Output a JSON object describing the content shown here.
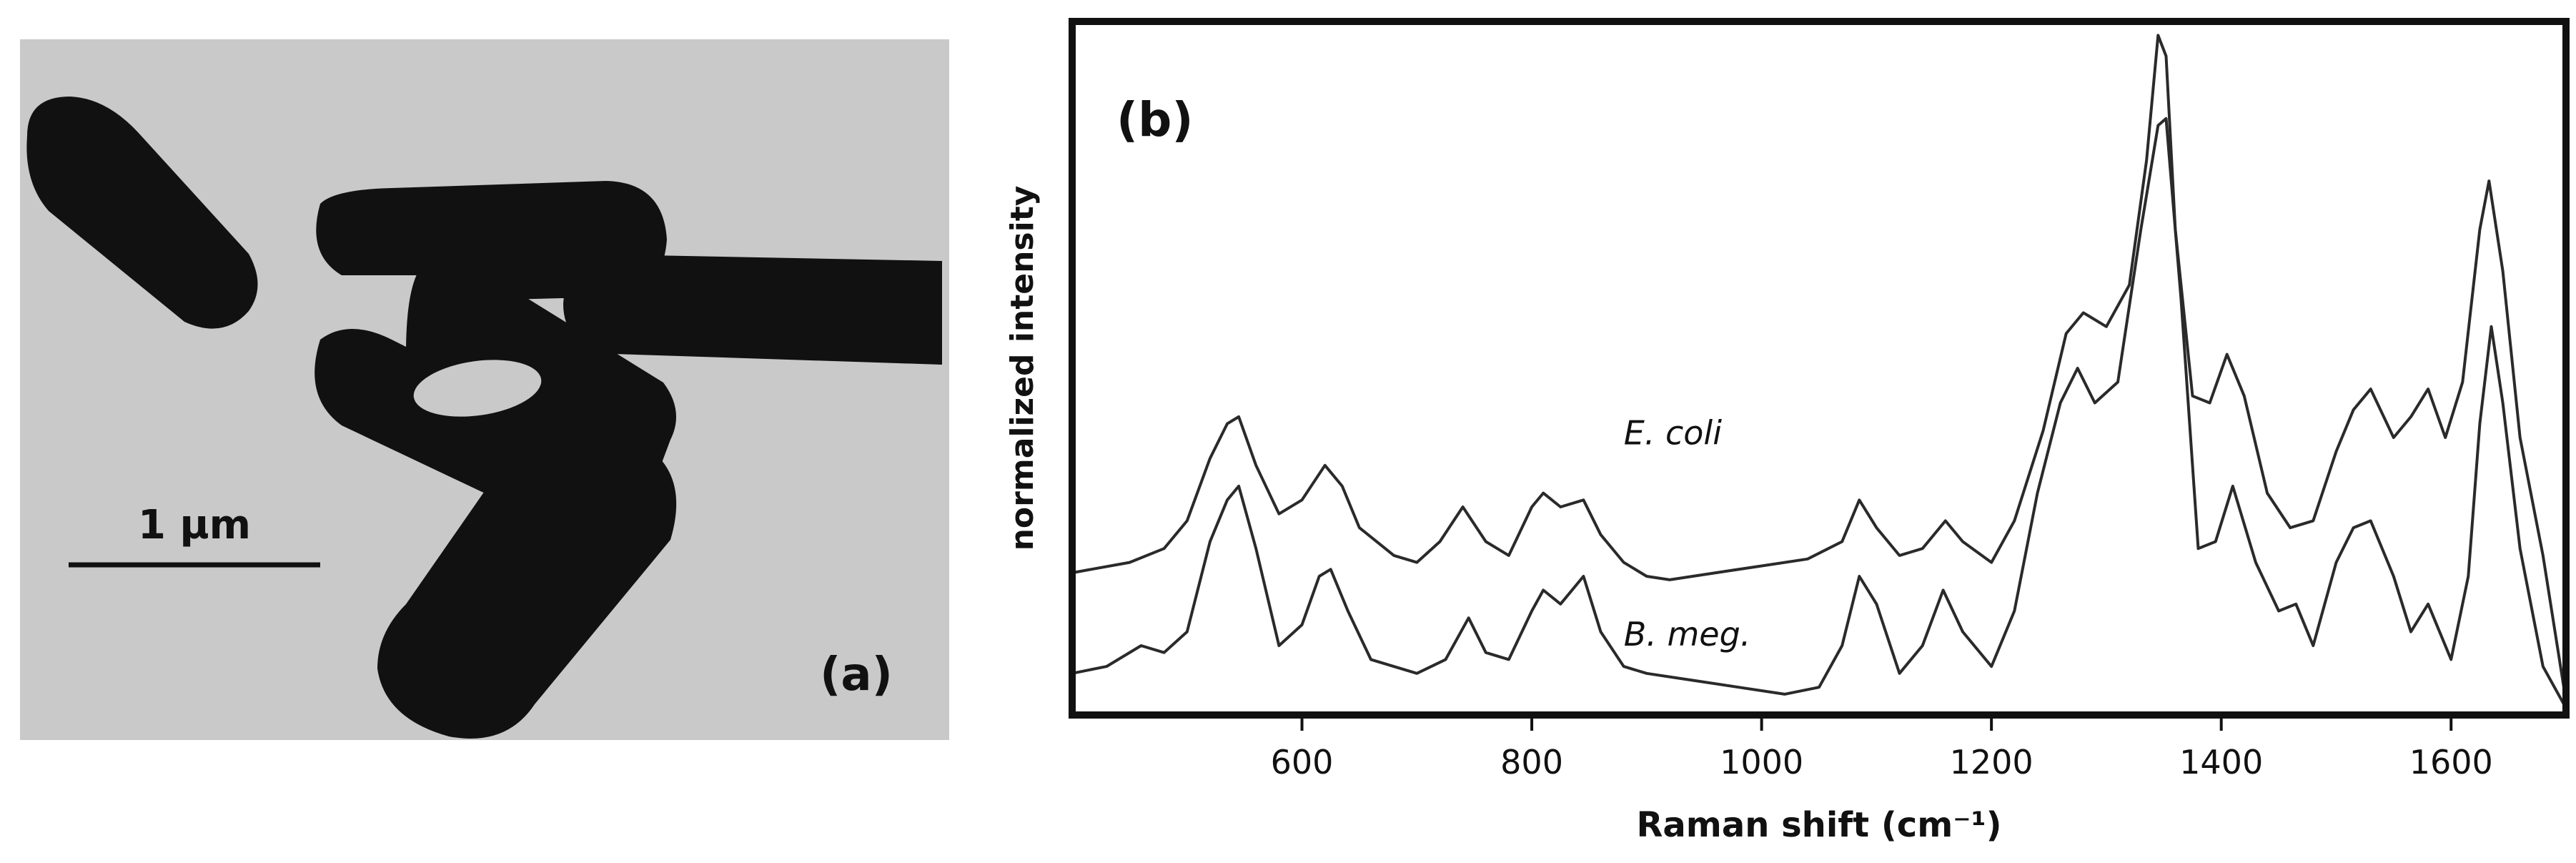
{
  "panel_a": {
    "label": "(a)",
    "scale_bar_label": "1 µm",
    "background_color": "#c9c9c9",
    "cell_color": "#111111"
  },
  "chart_data": {
    "type": "line",
    "panel_label": "(b)",
    "xlabel": "Raman shift (cm⁻¹)",
    "ylabel": "normalized intensity",
    "xlim": [
      400,
      1700
    ],
    "ylim": [
      0,
      1
    ],
    "x_ticks": [
      600,
      800,
      1000,
      1200,
      1400,
      1600
    ],
    "grid": false,
    "line_color": "#2a2a2a",
    "series": [
      {
        "name": "E. coli",
        "points": [
          [
            400,
            0.205
          ],
          [
            450,
            0.22
          ],
          [
            480,
            0.24
          ],
          [
            500,
            0.28
          ],
          [
            520,
            0.37
          ],
          [
            535,
            0.42
          ],
          [
            545,
            0.43
          ],
          [
            560,
            0.36
          ],
          [
            580,
            0.29
          ],
          [
            600,
            0.31
          ],
          [
            620,
            0.36
          ],
          [
            635,
            0.33
          ],
          [
            650,
            0.27
          ],
          [
            680,
            0.23
          ],
          [
            700,
            0.22
          ],
          [
            720,
            0.25
          ],
          [
            740,
            0.3
          ],
          [
            760,
            0.25
          ],
          [
            780,
            0.23
          ],
          [
            800,
            0.3
          ],
          [
            810,
            0.32
          ],
          [
            825,
            0.3
          ],
          [
            845,
            0.31
          ],
          [
            860,
            0.26
          ],
          [
            880,
            0.22
          ],
          [
            900,
            0.2
          ],
          [
            920,
            0.195
          ],
          [
            960,
            0.205
          ],
          [
            1000,
            0.215
          ],
          [
            1040,
            0.225
          ],
          [
            1070,
            0.25
          ],
          [
            1085,
            0.31
          ],
          [
            1100,
            0.27
          ],
          [
            1120,
            0.23
          ],
          [
            1140,
            0.24
          ],
          [
            1160,
            0.28
          ],
          [
            1175,
            0.25
          ],
          [
            1200,
            0.22
          ],
          [
            1220,
            0.28
          ],
          [
            1245,
            0.41
          ],
          [
            1265,
            0.55
          ],
          [
            1280,
            0.58
          ],
          [
            1300,
            0.56
          ],
          [
            1320,
            0.62
          ],
          [
            1335,
            0.8
          ],
          [
            1345,
            0.98
          ],
          [
            1352,
            0.95
          ],
          [
            1360,
            0.7
          ],
          [
            1375,
            0.46
          ],
          [
            1390,
            0.45
          ],
          [
            1405,
            0.52
          ],
          [
            1420,
            0.46
          ],
          [
            1440,
            0.32
          ],
          [
            1460,
            0.27
          ],
          [
            1480,
            0.28
          ],
          [
            1500,
            0.38
          ],
          [
            1515,
            0.44
          ],
          [
            1530,
            0.47
          ],
          [
            1550,
            0.4
          ],
          [
            1565,
            0.43
          ],
          [
            1580,
            0.47
          ],
          [
            1595,
            0.4
          ],
          [
            1610,
            0.48
          ],
          [
            1625,
            0.7
          ],
          [
            1633,
            0.77
          ],
          [
            1645,
            0.64
          ],
          [
            1660,
            0.4
          ],
          [
            1680,
            0.23
          ],
          [
            1700,
            0.02
          ]
        ]
      },
      {
        "name": "B. meg.",
        "points": [
          [
            400,
            0.06
          ],
          [
            430,
            0.07
          ],
          [
            460,
            0.1
          ],
          [
            480,
            0.09
          ],
          [
            500,
            0.12
          ],
          [
            520,
            0.25
          ],
          [
            535,
            0.31
          ],
          [
            545,
            0.33
          ],
          [
            560,
            0.24
          ],
          [
            580,
            0.1
          ],
          [
            600,
            0.13
          ],
          [
            615,
            0.2
          ],
          [
            625,
            0.21
          ],
          [
            640,
            0.15
          ],
          [
            660,
            0.08
          ],
          [
            700,
            0.06
          ],
          [
            725,
            0.08
          ],
          [
            745,
            0.14
          ],
          [
            760,
            0.09
          ],
          [
            780,
            0.08
          ],
          [
            800,
            0.15
          ],
          [
            810,
            0.18
          ],
          [
            825,
            0.16
          ],
          [
            845,
            0.2
          ],
          [
            860,
            0.12
          ],
          [
            880,
            0.07
          ],
          [
            900,
            0.06
          ],
          [
            940,
            0.05
          ],
          [
            980,
            0.04
          ],
          [
            1020,
            0.03
          ],
          [
            1050,
            0.04
          ],
          [
            1070,
            0.1
          ],
          [
            1085,
            0.2
          ],
          [
            1100,
            0.16
          ],
          [
            1120,
            0.06
          ],
          [
            1140,
            0.1
          ],
          [
            1158,
            0.18
          ],
          [
            1175,
            0.12
          ],
          [
            1200,
            0.07
          ],
          [
            1220,
            0.15
          ],
          [
            1240,
            0.32
          ],
          [
            1260,
            0.45
          ],
          [
            1275,
            0.5
          ],
          [
            1290,
            0.45
          ],
          [
            1310,
            0.48
          ],
          [
            1330,
            0.7
          ],
          [
            1345,
            0.85
          ],
          [
            1352,
            0.86
          ],
          [
            1365,
            0.6
          ],
          [
            1380,
            0.24
          ],
          [
            1395,
            0.25
          ],
          [
            1410,
            0.33
          ],
          [
            1430,
            0.22
          ],
          [
            1450,
            0.15
          ],
          [
            1465,
            0.16
          ],
          [
            1480,
            0.1
          ],
          [
            1500,
            0.22
          ],
          [
            1515,
            0.27
          ],
          [
            1530,
            0.28
          ],
          [
            1550,
            0.2
          ],
          [
            1565,
            0.12
          ],
          [
            1580,
            0.16
          ],
          [
            1600,
            0.08
          ],
          [
            1615,
            0.2
          ],
          [
            1625,
            0.42
          ],
          [
            1635,
            0.56
          ],
          [
            1645,
            0.45
          ],
          [
            1660,
            0.24
          ],
          [
            1680,
            0.07
          ],
          [
            1700,
            0.01
          ]
        ]
      }
    ]
  }
}
